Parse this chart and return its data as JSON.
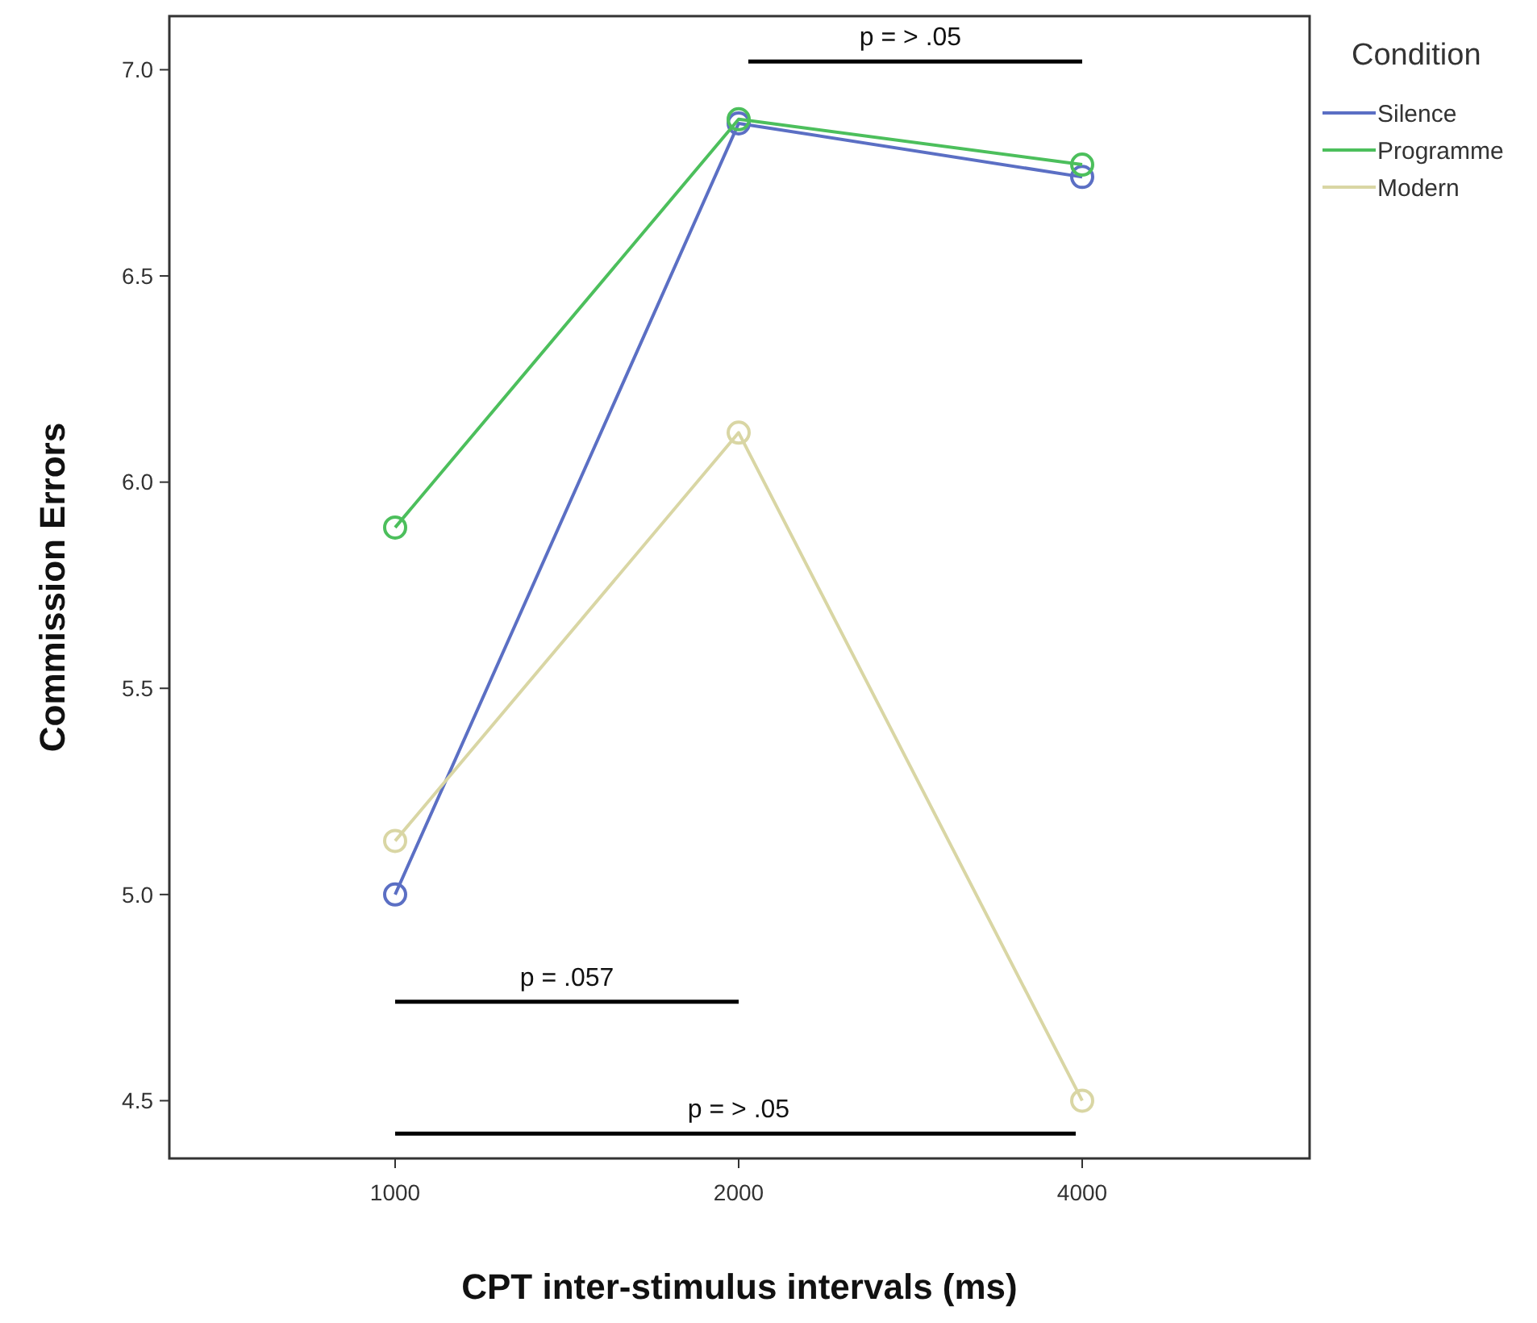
{
  "chart_data": {
    "type": "line",
    "xlabel": "CPT inter-stimulus intervals (ms)",
    "ylabel": "Commission Errors",
    "legend_title": "Condition",
    "legend": "top right",
    "marker": "circle",
    "line_style": "solid",
    "grid": false,
    "categories": [
      "1000",
      "2000",
      "4000"
    ],
    "ylim": [
      4.36,
      7.13
    ],
    "yticks": [
      {
        "value": 4.5,
        "label": "4.5"
      },
      {
        "value": 5.0,
        "label": "5.0"
      },
      {
        "value": 5.5,
        "label": "5.5"
      },
      {
        "value": 6.0,
        "label": "6.0"
      },
      {
        "value": 6.5,
        "label": "6.5"
      },
      {
        "value": 7.0,
        "label": "7.0"
      }
    ],
    "series": [
      {
        "name": "Silence",
        "color": "#5b6fc4",
        "values": [
          5.0,
          6.87,
          6.74
        ]
      },
      {
        "name": "Programme",
        "color": "#4cbf5c",
        "values": [
          5.89,
          6.88,
          6.77
        ]
      },
      {
        "name": "Modern",
        "color": "#d9d6a4",
        "values": [
          5.13,
          6.12,
          4.5
        ]
      }
    ],
    "annotations": [
      "p = > .05",
      "p = .057",
      "p = > .05"
    ]
  }
}
